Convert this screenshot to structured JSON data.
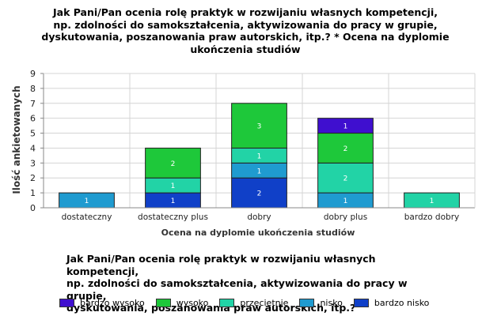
{
  "chart_data": {
    "type": "bar",
    "stacked": true,
    "title": "Jak Pani/Pan ocenia rolę praktyk w rozwijaniu własnych kompetencji,\nnp. zdolności do samokształcenia, aktywizowania do pracy w grupie,\ndyskutowania, poszanowania praw autorskich, itp.? * Ocena na dyplomie\nukończenia studiów",
    "xlabel": "Ocena na dyplomie ukończenia studiów",
    "ylabel": "Ilość ankietowanych",
    "ylim": [
      0,
      9
    ],
    "yticks": [
      "0",
      "1",
      "2",
      "3",
      "4",
      "5",
      "6",
      "7",
      "8",
      "9"
    ],
    "grid": true,
    "categories": [
      "dostateczny",
      "dostateczny plus",
      "dobry",
      "dobry plus",
      "bardzo dobry"
    ],
    "series": [
      {
        "name": "bardzo nisko",
        "color": "#1040c8",
        "values": [
          0,
          1,
          2,
          0,
          0
        ]
      },
      {
        "name": "nisko",
        "color": "#1f9bd0",
        "values": [
          1,
          0,
          1,
          1,
          0
        ]
      },
      {
        "name": "przeciętnie",
        "color": "#22d3a6",
        "values": [
          0,
          1,
          1,
          2,
          1
        ]
      },
      {
        "name": "wysoko",
        "color": "#1ec83a",
        "values": [
          0,
          2,
          3,
          2,
          0
        ]
      },
      {
        "name": "bardzo wysoko",
        "color": "#3f0fcf",
        "values": [
          0,
          0,
          0,
          1,
          0
        ]
      }
    ],
    "legend_title": "Jak Pani/Pan ocenia rolę praktyk w rozwijaniu własnych kompetencji,\nnp. zdolności do samokształcenia, aktywizowania do pracy w grupie,\ndyskutowania, poszanowania praw autorskich, itp.?",
    "legend_order": [
      "bardzo wysoko",
      "wysoko",
      "przeciętnie",
      "nisko",
      "bardzo nisko"
    ],
    "legend_placement": "bottom"
  }
}
